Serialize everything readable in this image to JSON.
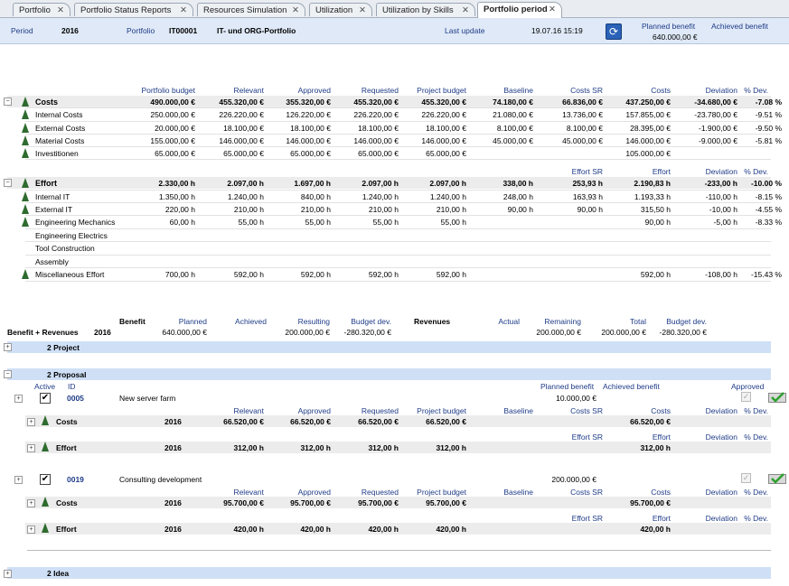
{
  "tabs": [
    {
      "label": "Portfolio"
    },
    {
      "label": "Portfolio Status Reports"
    },
    {
      "label": "Resources Simulation"
    },
    {
      "label": "Utilization"
    },
    {
      "label": "Utilization by Skills"
    },
    {
      "label": "Portfolio period"
    }
  ],
  "header": {
    "period_label": "Period",
    "period": "2016",
    "portfolio_label": "Portfolio",
    "portfolio_id": "IT00001",
    "portfolio_name": "IT- und ORG-Portfolio",
    "last_update_label": "Last update",
    "last_update": "19.07.16 15:19",
    "planned_benefit_label": "Planned benefit",
    "planned_benefit": "640.000,00 €",
    "achieved_benefit_label": "Achieved benefit"
  },
  "costs_columns": [
    "Portfolio budget",
    "Relevant",
    "Approved",
    "Requested",
    "Project budget",
    "Baseline",
    "Costs SR",
    "Costs",
    "Deviation",
    "% Dev."
  ],
  "costs_rows": [
    {
      "name": "Costs",
      "v": [
        "490.000,00 €",
        "455.320,00 €",
        "355.320,00 €",
        "455.320,00 €",
        "455.320,00 €",
        "74.180,00 €",
        "66.836,00 €",
        "437.250,00 €",
        "-34.680,00 €",
        "-7.08 %"
      ]
    },
    {
      "name": "Internal Costs",
      "v": [
        "250.000,00 €",
        "226.220,00 €",
        "126.220,00 €",
        "226.220,00 €",
        "226.220,00 €",
        "21.080,00 €",
        "13.736,00 €",
        "157.855,00 €",
        "-23.780,00 €",
        "-9.51 %"
      ]
    },
    {
      "name": "External Costs",
      "v": [
        "20.000,00 €",
        "18.100,00 €",
        "18.100,00 €",
        "18.100,00 €",
        "18.100,00 €",
        "8.100,00 €",
        "8.100,00 €",
        "28.395,00 €",
        "-1.900,00 €",
        "-9.50 %"
      ]
    },
    {
      "name": "Material Costs",
      "v": [
        "155.000,00 €",
        "146.000,00 €",
        "146.000,00 €",
        "146.000,00 €",
        "146.000,00 €",
        "45.000,00 €",
        "45.000,00 €",
        "146.000,00 €",
        "-9.000,00 €",
        "-5.81 %"
      ]
    },
    {
      "name": "Investitionen",
      "v": [
        "65.000,00 €",
        "65.000,00 €",
        "65.000,00 €",
        "65.000,00 €",
        "65.000,00 €",
        "",
        "",
        "105.000,00 €",
        "",
        ""
      ]
    }
  ],
  "effort_columns": [
    "Effort SR",
    "Effort",
    "Deviation",
    "% Dev."
  ],
  "effort_rows": [
    {
      "name": "Effort",
      "v": [
        "2.330,00 h",
        "2.097,00 h",
        "1.697,00 h",
        "2.097,00 h",
        "2.097,00 h",
        "338,00 h",
        "253,93 h",
        "2.190,83 h",
        "-233,00 h",
        "-10.00 %"
      ]
    },
    {
      "name": "Internal IT",
      "v": [
        "1.350,00 h",
        "1.240,00 h",
        "840,00 h",
        "1.240,00 h",
        "1.240,00 h",
        "248,00 h",
        "163,93 h",
        "1.193,33 h",
        "-110,00 h",
        "-8.15 %"
      ]
    },
    {
      "name": "External IT",
      "v": [
        "220,00 h",
        "210,00 h",
        "210,00 h",
        "210,00 h",
        "210,00 h",
        "90,00 h",
        "90,00 h",
        "315,50 h",
        "-10,00 h",
        "-4.55 %"
      ]
    },
    {
      "name": "Engineering Mechanics",
      "v": [
        "60,00 h",
        "55,00 h",
        "55,00 h",
        "55,00 h",
        "55,00 h",
        "",
        "",
        "90,00 h",
        "-5,00 h",
        "-8.33 %"
      ]
    },
    {
      "name": "Engineering Electrics",
      "v": [
        "",
        "",
        "",
        "",
        "",
        "",
        "",
        "",
        "",
        ""
      ]
    },
    {
      "name": "Tool Construction",
      "v": [
        "",
        "",
        "",
        "",
        "",
        "",
        "",
        "",
        "",
        ""
      ]
    },
    {
      "name": "Assembly",
      "v": [
        "",
        "",
        "",
        "",
        "",
        "",
        "",
        "",
        "",
        ""
      ]
    },
    {
      "name": "Miscellaneous Effort",
      "v": [
        "700,00 h",
        "592,00 h",
        "592,00 h",
        "592,00 h",
        "592,00 h",
        "",
        "",
        "592,00 h",
        "-108,00 h",
        "-15.43 %"
      ]
    }
  ],
  "benefit": {
    "label": "Benefit + Revenues",
    "year": "2016",
    "benefit_title": "Benefit",
    "cols": [
      "Planned",
      "Achieved",
      "Resulting",
      "Budget dev."
    ],
    "values": [
      "640.000,00 €",
      "",
      "200.000,00 €",
      "-280.320,00 €"
    ],
    "revenues_title": "Revenues",
    "rcols": [
      "Actual",
      "Remaining",
      "Total",
      "Budget dev."
    ],
    "rvalues": [
      "",
      "200.000,00 €",
      "200.000,00 €",
      "-280.320,00 €"
    ]
  },
  "groups": {
    "project": "2 Project",
    "proposal": "2 Proposal",
    "idea": "2 Idea"
  },
  "proposal_header": {
    "active": "Active",
    "id": "ID",
    "planned_benefit": "Planned benefit",
    "achieved_benefit": "Achieved benefit",
    "approved": "Approved"
  },
  "item_columns": [
    "Relevant",
    "Approved",
    "Requested",
    "Project budget",
    "Baseline",
    "Costs SR",
    "Costs",
    "Deviation",
    "% Dev."
  ],
  "item_effort_columns": [
    "Effort SR",
    "Effort",
    "Deviation",
    "% Dev."
  ],
  "proposals": [
    {
      "id": "0005",
      "name": "New server farm",
      "benefit": "10.000,00 €",
      "costs": {
        "label": "Costs",
        "year": "2016",
        "v": [
          "66.520,00 €",
          "66.520,00 €",
          "66.520,00 €",
          "66.520,00 €",
          "",
          "",
          "66.520,00 €",
          "",
          ""
        ]
      },
      "effort": {
        "label": "Effort",
        "year": "2016",
        "v": [
          "312,00 h",
          "312,00 h",
          "312,00 h",
          "312,00 h",
          "",
          "",
          "312,00 h",
          "",
          ""
        ]
      }
    },
    {
      "id": "0019",
      "name": "Consulting development",
      "benefit": "200.000,00 €",
      "costs": {
        "label": "Costs",
        "year": "2016",
        "v": [
          "95.700,00 €",
          "95.700,00 €",
          "95.700,00 €",
          "95.700,00 €",
          "",
          "",
          "95.700,00 €",
          "",
          ""
        ]
      },
      "effort": {
        "label": "Effort",
        "year": "2016",
        "v": [
          "420,00 h",
          "420,00 h",
          "420,00 h",
          "420,00 h",
          "",
          "",
          "420,00 h",
          "",
          ""
        ]
      }
    }
  ],
  "colors": {
    "accent": "#1f3c88",
    "band": "#cfe0f6",
    "header": "#dfe9f7",
    "icon_green": "#2e6b2e"
  }
}
